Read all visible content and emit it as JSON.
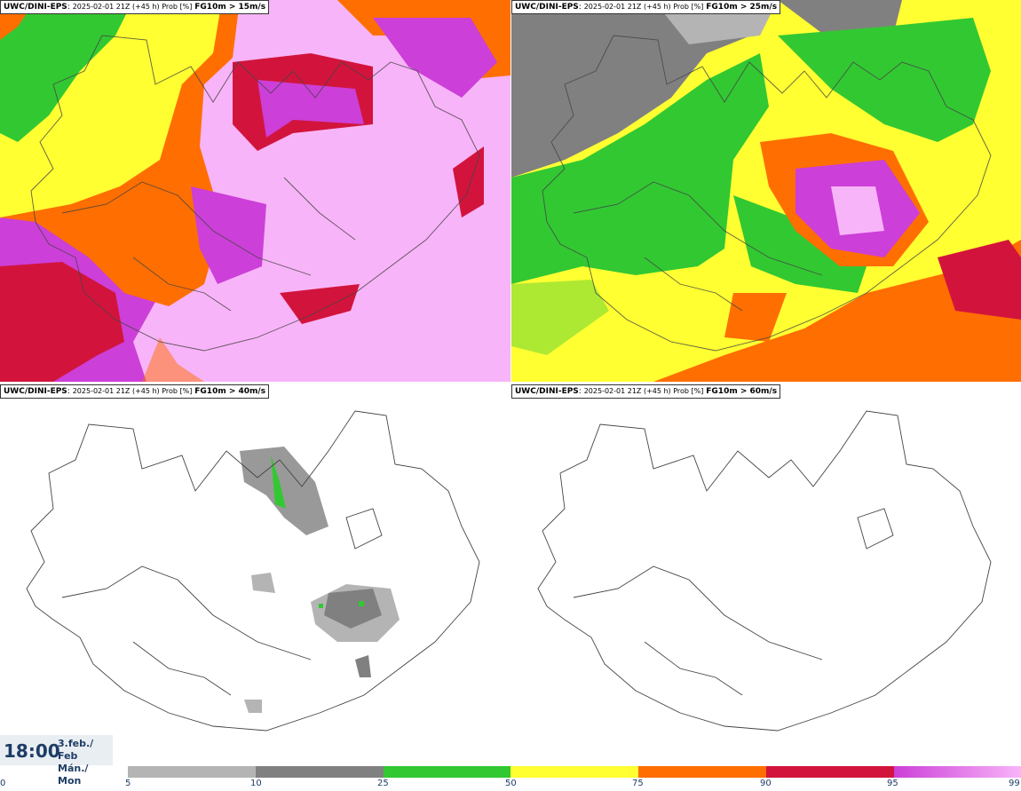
{
  "panels": [
    {
      "model": "UWC/DINI-EPS",
      "run": "2025-02-01 21Z (+45 h) Prob [%]",
      "param": "FG10m > 15m/s"
    },
    {
      "model": "UWC/DINI-EPS",
      "run": "2025-02-01 21Z (+45 h) Prob [%]",
      "param": "FG10m > 25m/s"
    },
    {
      "model": "UWC/DINI-EPS",
      "run": "2025-02-01 21Z (+45 h) Prob [%]",
      "param": "FG10m > 40m/s"
    },
    {
      "model": "UWC/DINI-EPS",
      "run": "2025-02-01 21Z (+45 h) Prob [%]",
      "param": "FG10m > 60m/s"
    }
  ],
  "valid_time": {
    "time": "18:00",
    "date_line1": "3.feb./ Feb",
    "date_line2": "Mán./ Mon"
  },
  "colorbar": {
    "ticks": [
      "0",
      "5",
      "10",
      "25",
      "50",
      "75",
      "90",
      "95",
      "99"
    ],
    "colors": [
      "#b4b4b4",
      "#808080",
      "#32c832",
      "#ffff32",
      "#ff6e00",
      "#d2143c",
      "#cc3fd8",
      "#f8b4f8"
    ]
  }
}
